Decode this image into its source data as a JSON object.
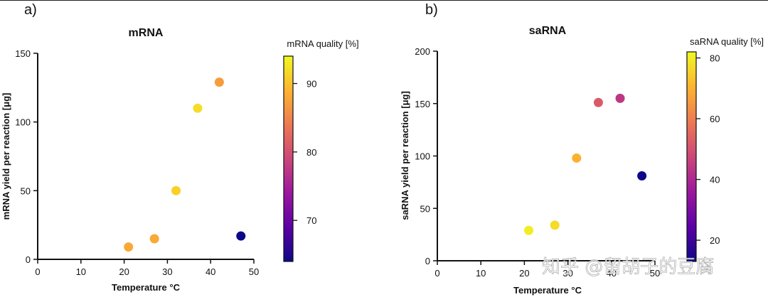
{
  "panels": [
    {
      "id": "a",
      "label": "a)"
    },
    {
      "id": "b",
      "label": "b)"
    }
  ],
  "watermark": "知乎 @留胡子的豆腐",
  "colormap": [
    "#0d0887",
    "#5c01a6",
    "#9c179e",
    "#cc4778",
    "#ed7953",
    "#fdb42f",
    "#f0f921"
  ],
  "chart_data": [
    {
      "type": "scatter",
      "title": "mRNA",
      "xlabel": "Temperature °C",
      "ylabel": "mRNA yield per reaction [μg]",
      "xlim": [
        0,
        50
      ],
      "ylim": [
        0,
        150
      ],
      "xticks": [
        0,
        10,
        20,
        30,
        40,
        50
      ],
      "yticks": [
        0,
        50,
        100,
        150
      ],
      "colorbar": {
        "title": "mRNA quality [%]",
        "range": [
          64,
          94
        ],
        "ticks": [
          70,
          80,
          90
        ]
      },
      "points": [
        {
          "x": 21,
          "y": 9,
          "quality": 88
        },
        {
          "x": 27,
          "y": 15,
          "quality": 88
        },
        {
          "x": 32,
          "y": 50,
          "quality": 91
        },
        {
          "x": 37,
          "y": 110,
          "quality": 92
        },
        {
          "x": 42,
          "y": 129,
          "quality": 87
        },
        {
          "x": 47,
          "y": 17,
          "quality": 64
        }
      ]
    },
    {
      "type": "scatter",
      "title": "saRNA",
      "xlabel": "Temperature °C",
      "ylabel": "saRNA yield per reaction [μg]",
      "xlim": [
        0,
        50
      ],
      "ylim": [
        0,
        200
      ],
      "xticks": [
        0,
        10,
        20,
        30,
        40,
        50
      ],
      "yticks": [
        0,
        50,
        100,
        150,
        200
      ],
      "colorbar": {
        "title": "saRNA quality [%]",
        "range": [
          13,
          82
        ],
        "ticks": [
          20,
          40,
          60,
          80
        ]
      },
      "points": [
        {
          "x": 21,
          "y": 29,
          "quality": 80
        },
        {
          "x": 27,
          "y": 34,
          "quality": 77
        },
        {
          "x": 32,
          "y": 98,
          "quality": 70
        },
        {
          "x": 37,
          "y": 151,
          "quality": 52
        },
        {
          "x": 42,
          "y": 155,
          "quality": 44
        },
        {
          "x": 47,
          "y": 81,
          "quality": 13
        }
      ]
    }
  ]
}
